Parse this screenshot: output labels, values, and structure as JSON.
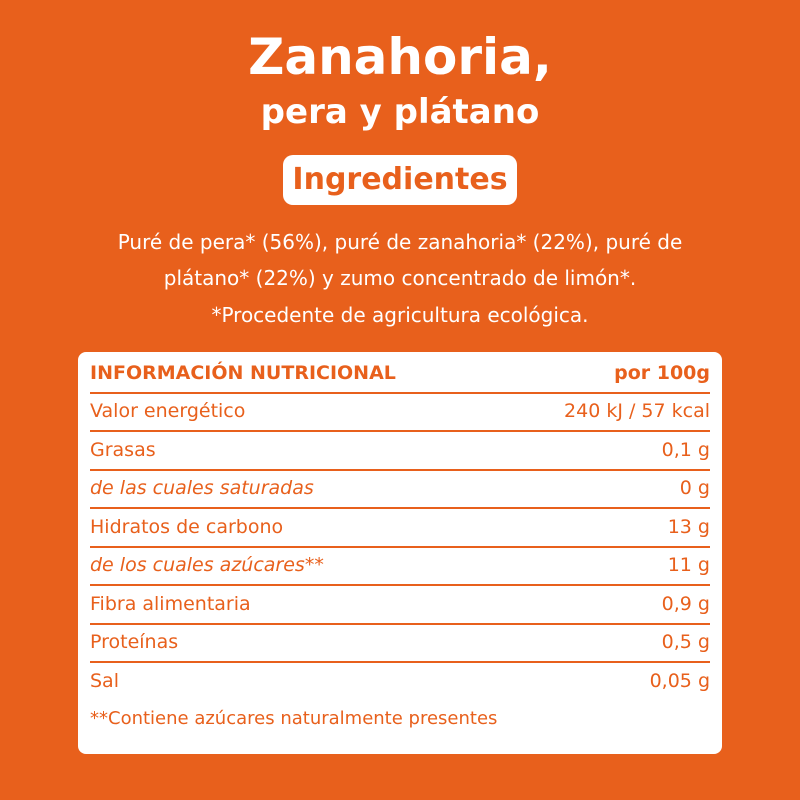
{
  "header": {
    "title_line1": "Zanahoria,",
    "title_line2": "pera y plátano",
    "badge": "Ingredientes"
  },
  "ingredients": {
    "line1": "Puré de pera* (56%), puré de zanahoria* (22%), puré de",
    "line2": "plátano* (22%) y zumo concentrado de limón*.",
    "note": "*Procedente de agricultura ecológica."
  },
  "table": {
    "header": [
      "INFORMACIÓN NUTRICIONAL",
      "por 100g"
    ],
    "rows": [
      [
        "Valor energético",
        "240 kJ / 57 kcal"
      ],
      [
        "Grasas",
        "0,1 g"
      ],
      [
        "de las cuales saturadas",
        "0 g"
      ],
      [
        "Hidratos de carbono",
        "13 g"
      ],
      [
        "de los cuales azúcares**",
        "11 g"
      ],
      [
        "Fibra alimentaria",
        "0,9 g"
      ],
      [
        "Proteínas",
        "0,5 g"
      ],
      [
        "Sal",
        "0,05 g"
      ]
    ],
    "footnote": "**Contiene azúcares naturalmente presentes"
  }
}
